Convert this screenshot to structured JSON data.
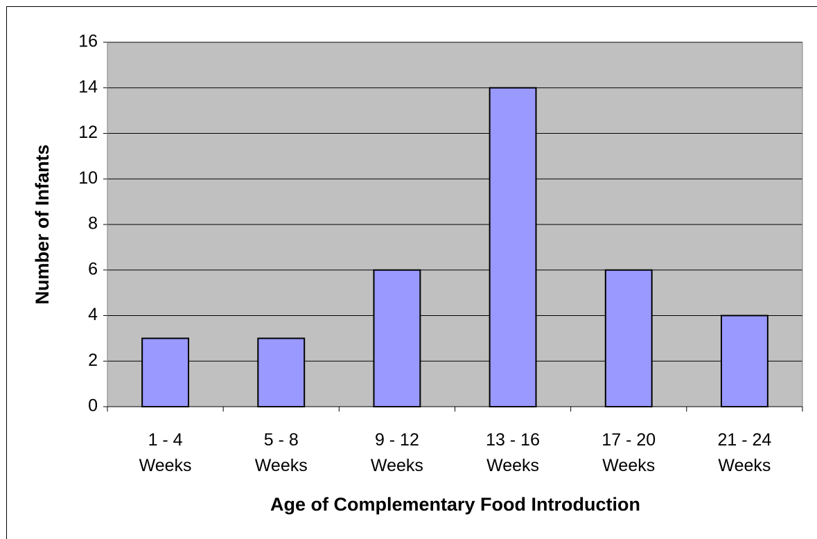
{
  "chart_data": {
    "type": "bar",
    "x_label": "Age of Complementary Food Introduction",
    "y_label": "Number of Infants",
    "categories": [
      "1 - 4\nWeeks",
      "5 - 8\nWeeks",
      "9 - 12\nWeeks",
      "13 - 16\nWeeks",
      "17 - 20\nWeeks",
      "21 - 24\nWeeks"
    ],
    "values": [
      3,
      3,
      6,
      14,
      6,
      4
    ],
    "color": "#9999ff",
    "ylim": [
      0,
      16
    ],
    "yticks": [
      0,
      2,
      4,
      6,
      8,
      10,
      12,
      14,
      16
    ],
    "grid": true
  }
}
